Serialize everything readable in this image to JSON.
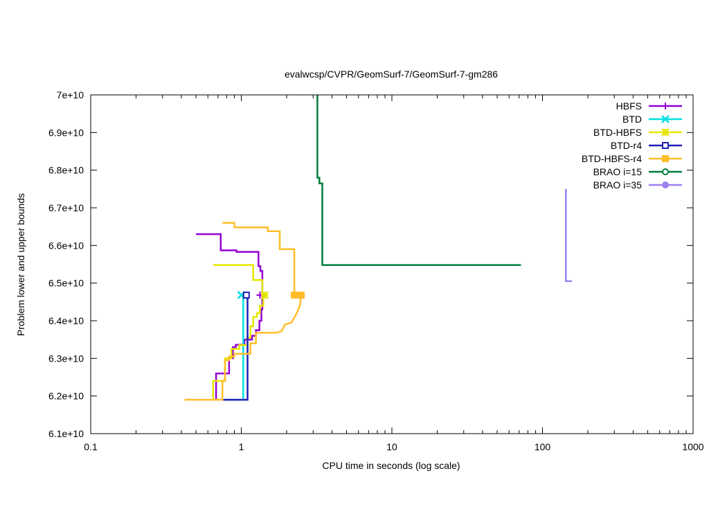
{
  "chart_data": {
    "type": "line",
    "title": "evalwcsp/CVPR/GeomSurf-7/GeomSurf-7-gm286",
    "xlabel": "CPU time in seconds (log scale)",
    "ylabel": "Problem lower and upper bounds",
    "x_scale": "log",
    "xlim": [
      0.1,
      1000
    ],
    "ylim": [
      61000000000,
      70000000000
    ],
    "x_ticks": [
      {
        "value": 0.1,
        "label": "0.1"
      },
      {
        "value": 1,
        "label": "1"
      },
      {
        "value": 10,
        "label": "10"
      },
      {
        "value": 100,
        "label": "100"
      },
      {
        "value": 1000,
        "label": "1000"
      }
    ],
    "y_ticks": [
      {
        "value": 61000000000,
        "label": "6.1e+10"
      },
      {
        "value": 62000000000,
        "label": "6.2e+10"
      },
      {
        "value": 63000000000,
        "label": "6.3e+10"
      },
      {
        "value": 64000000000,
        "label": "6.4e+10"
      },
      {
        "value": 65000000000,
        "label": "6.5e+10"
      },
      {
        "value": 66000000000,
        "label": "6.6e+10"
      },
      {
        "value": 67000000000,
        "label": "6.7e+10"
      },
      {
        "value": 68000000000,
        "label": "6.8e+10"
      },
      {
        "value": 69000000000,
        "label": "6.9e+10"
      },
      {
        "value": 70000000000,
        "label": "7e+10"
      }
    ],
    "legend_position": "top-right",
    "grid": false,
    "series": [
      {
        "name": "HBFS",
        "color": "#9400d3",
        "marker": "plus",
        "marker_points": [
          [
            1.33,
            64680000000
          ]
        ],
        "lines": [
          [
            [
              0.5,
              66300000000
            ],
            [
              0.73,
              66300000000
            ],
            [
              0.73,
              65870000000
            ],
            [
              0.93,
              65870000000
            ],
            [
              0.93,
              65830000000
            ],
            [
              1.3,
              65830000000
            ],
            [
              1.3,
              65450000000
            ],
            [
              1.34,
              65450000000
            ],
            [
              1.34,
              65320000000
            ],
            [
              1.38,
              65320000000
            ],
            [
              1.38,
              64700000000
            ]
          ],
          [
            [
              0.68,
              61900000000
            ],
            [
              0.68,
              62600000000
            ],
            [
              0.83,
              62600000000
            ],
            [
              0.83,
              63000000000
            ],
            [
              0.88,
              63000000000
            ],
            [
              0.88,
              63300000000
            ],
            [
              0.92,
              63300000000
            ],
            [
              0.92,
              63360000000
            ],
            [
              1.05,
              63360000000
            ],
            [
              1.05,
              63500000000
            ],
            [
              1.18,
              63500000000
            ],
            [
              1.18,
              63600000000
            ],
            [
              1.25,
              63600000000
            ],
            [
              1.25,
              63750000000
            ],
            [
              1.32,
              63750000000
            ],
            [
              1.32,
              64000000000
            ],
            [
              1.36,
              64000000000
            ],
            [
              1.36,
              64300000000
            ],
            [
              1.38,
              64300000000
            ],
            [
              1.38,
              64680000000
            ]
          ]
        ]
      },
      {
        "name": "BTD",
        "color": "#00e0e0",
        "marker": "cross",
        "marker_points": [
          [
            1.0,
            64680000000
          ]
        ],
        "lines": [
          [
            [
              0.77,
              61900000000
            ],
            [
              1.03,
              61900000000
            ],
            [
              1.03,
              64680000000
            ]
          ]
        ]
      },
      {
        "name": "BTD-HBFS",
        "color": "#e5e500",
        "marker": "star",
        "marker_points": [
          [
            1.43,
            64680000000
          ]
        ],
        "lines": [
          [
            [
              0.65,
              65480000000
            ],
            [
              1.2,
              65480000000
            ],
            [
              1.2,
              65080000000
            ],
            [
              1.38,
              65080000000
            ],
            [
              1.38,
              64680000000
            ]
          ],
          [
            [
              0.65,
              61900000000
            ],
            [
              0.65,
              62400000000
            ],
            [
              0.78,
              62400000000
            ],
            [
              0.78,
              63000000000
            ],
            [
              0.86,
              63000000000
            ],
            [
              0.86,
              63250000000
            ],
            [
              0.97,
              63250000000
            ],
            [
              0.97,
              63350000000
            ],
            [
              1.1,
              63350000000
            ],
            [
              1.1,
              63550000000
            ],
            [
              1.15,
              63550000000
            ],
            [
              1.15,
              63850000000
            ],
            [
              1.2,
              63850000000
            ],
            [
              1.2,
              64100000000
            ],
            [
              1.27,
              64100000000
            ],
            [
              1.27,
              64200000000
            ],
            [
              1.33,
              64200000000
            ],
            [
              1.33,
              64400000000
            ],
            [
              1.4,
              64400000000
            ],
            [
              1.4,
              64680000000
            ]
          ]
        ]
      },
      {
        "name": "BTD-r4",
        "color": "#1e1eb4",
        "marker": "square",
        "marker_points": [
          [
            1.08,
            64680000000
          ]
        ],
        "lines": [
          [
            [
              0.75,
              61900000000
            ],
            [
              1.1,
              61900000000
            ],
            [
              1.1,
              64680000000
            ]
          ]
        ]
      },
      {
        "name": "BTD-HBFS-r4",
        "color": "#ffbe28",
        "marker": "filled-square",
        "marker_points": [
          [
            2.25,
            64680000000
          ],
          [
            2.5,
            64680000000
          ]
        ],
        "lines": [
          [
            [
              0.75,
              66600000000
            ],
            [
              0.9,
              66600000000
            ],
            [
              0.9,
              66480000000
            ],
            [
              1.5,
              66480000000
            ],
            [
              1.5,
              66380000000
            ],
            [
              1.8,
              66380000000
            ],
            [
              1.8,
              65900000000
            ],
            [
              2.25,
              65900000000
            ],
            [
              2.25,
              64680000000
            ]
          ],
          [
            [
              0.42,
              61900000000
            ],
            [
              0.75,
              61900000000
            ],
            [
              0.75,
              62400000000
            ],
            [
              0.78,
              62400000000
            ],
            [
              0.78,
              62950000000
            ],
            [
              0.83,
              62950000000
            ],
            [
              0.83,
              63050000000
            ],
            [
              0.9,
              63050000000
            ],
            [
              0.9,
              63120000000
            ],
            [
              1.15,
              63120000000
            ],
            [
              1.15,
              63400000000
            ],
            [
              1.25,
              63400000000
            ],
            [
              1.25,
              63680000000
            ],
            [
              1.7,
              63680000000
            ],
            [
              1.85,
              63720000000
            ],
            [
              1.95,
              63900000000
            ],
            [
              2.15,
              63950000000
            ],
            [
              2.3,
              64150000000
            ],
            [
              2.45,
              64400000000
            ],
            [
              2.5,
              64680000000
            ]
          ]
        ]
      },
      {
        "name": "BRAO i=15",
        "color": "#007d3c",
        "marker": "circle",
        "marker_points": [],
        "lines": [
          [
            [
              3.2,
              70000000000
            ],
            [
              3.2,
              67800000000
            ],
            [
              3.3,
              67800000000
            ],
            [
              3.3,
              67650000000
            ],
            [
              3.45,
              67650000000
            ],
            [
              3.45,
              65480000000
            ],
            [
              72,
              65480000000
            ]
          ]
        ]
      },
      {
        "name": "BRAO i=35",
        "color": "#9b80f0",
        "marker": "filled-circle",
        "marker_points": [],
        "lines": [
          [
            [
              143,
              67500000000
            ],
            [
              143,
              65050000000
            ],
            [
              157,
              65050000000
            ]
          ]
        ]
      }
    ]
  }
}
